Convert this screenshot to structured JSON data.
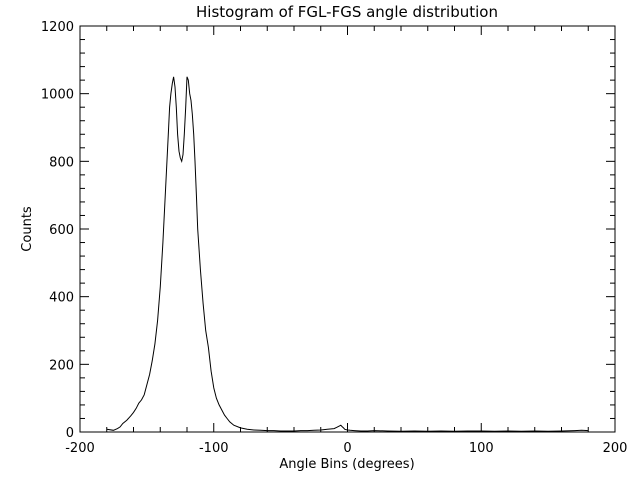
{
  "chart_data": {
    "type": "line",
    "title": "Histogram of FGL-FGS angle distribution",
    "xlabel": "Angle Bins (degrees)",
    "ylabel": "Counts",
    "xlim": [
      -200,
      200
    ],
    "ylim": [
      0,
      1200
    ],
    "xticks": [
      -200,
      -100,
      0,
      100,
      200
    ],
    "xtick_labels": [
      "-200",
      "-100",
      "0",
      "100",
      "200"
    ],
    "yticks": [
      0,
      200,
      400,
      600,
      800,
      1000,
      1200
    ],
    "ytick_labels": [
      "0",
      "200",
      "400",
      "600",
      "800",
      "1000",
      "1200"
    ],
    "grid": false,
    "legend": "none",
    "line_color": "#000000",
    "series": [
      {
        "x": [
          -180,
          -175,
          -172,
          -170,
          -168,
          -165,
          -162,
          -160,
          -158,
          -156,
          -154,
          -152,
          -150,
          -148,
          -146,
          -144,
          -142,
          -140,
          -138,
          -136,
          -134,
          -133,
          -132,
          -131,
          -130,
          -129,
          -128,
          -127,
          -126,
          -125,
          -124,
          -123,
          -122,
          -121,
          -120,
          -119,
          -118,
          -117,
          -116,
          -115,
          -114,
          -113,
          -112,
          -110,
          -108,
          -106,
          -104,
          -102,
          -100,
          -98,
          -96,
          -94,
          -92,
          -90,
          -88,
          -85,
          -80,
          -75,
          -70,
          -65,
          -60,
          -55,
          -50,
          -45,
          -40,
          -35,
          -30,
          -25,
          -20,
          -15,
          -10,
          -8,
          -6,
          -5,
          -4,
          -3,
          -2,
          0,
          2,
          5,
          10,
          15,
          20,
          30,
          40,
          50,
          60,
          70,
          80,
          90,
          100,
          110,
          120,
          130,
          140,
          150,
          160,
          170,
          175,
          180
        ],
        "y": [
          8,
          5,
          10,
          15,
          25,
          35,
          48,
          58,
          70,
          85,
          95,
          110,
          140,
          170,
          210,
          260,
          330,
          430,
          560,
          720,
          880,
          960,
          1000,
          1030,
          1050,
          1020,
          960,
          880,
          830,
          810,
          800,
          820,
          880,
          960,
          1050,
          1040,
          1000,
          980,
          940,
          880,
          800,
          700,
          600,
          480,
          380,
          300,
          250,
          180,
          130,
          100,
          80,
          65,
          50,
          40,
          30,
          20,
          12,
          8,
          6,
          5,
          4,
          4,
          3,
          3,
          3,
          4,
          4,
          5,
          6,
          8,
          10,
          14,
          18,
          20,
          16,
          12,
          8,
          6,
          5,
          4,
          3,
          3,
          4,
          3,
          2,
          3,
          2,
          3,
          2,
          3,
          3,
          2,
          3,
          2,
          3,
          2,
          3,
          4,
          5,
          4
        ]
      }
    ]
  }
}
